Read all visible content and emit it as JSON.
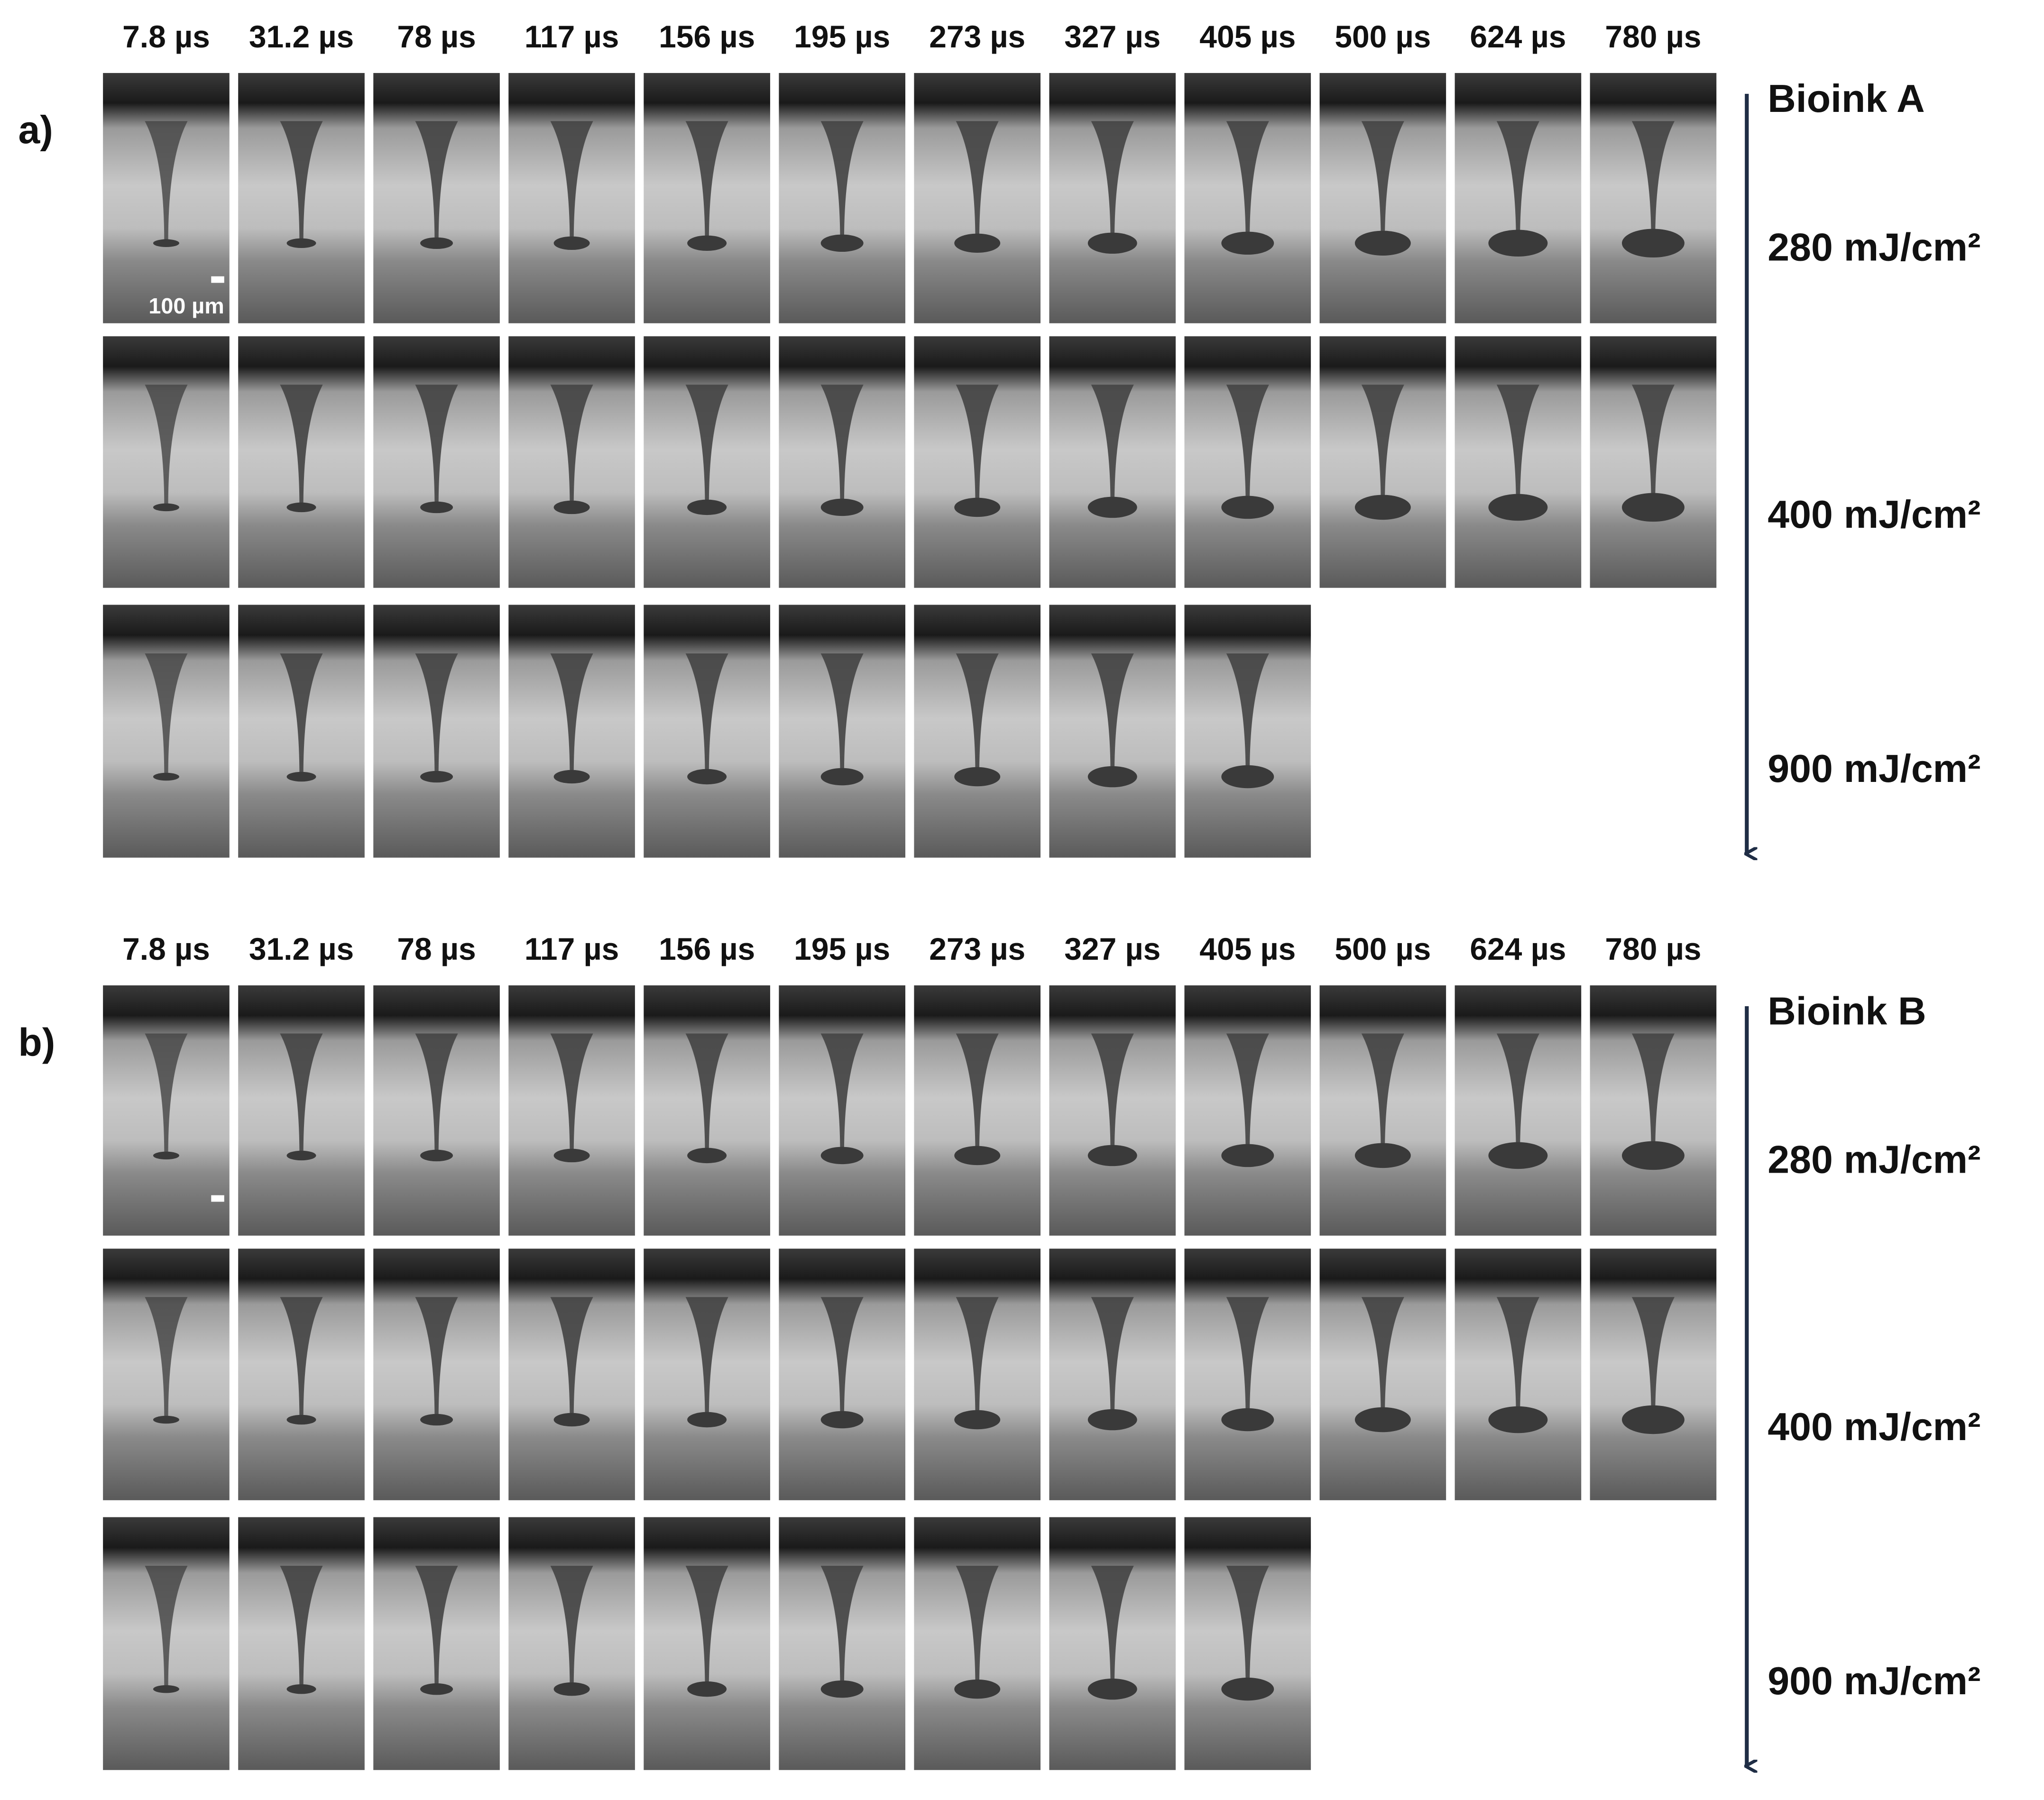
{
  "panels": [
    {
      "label": "a)",
      "bioink": "Bioink  A",
      "times": [
        "7.8 µs",
        "31.2 µs",
        "78 µs",
        "117 µs",
        "156 µs",
        "195 µs",
        "273 µs",
        "327 µs",
        "405 µs",
        "500 µs",
        "624 µs",
        "780 µs"
      ],
      "fluences": [
        "280 mJ/cm²",
        "400 mJ/cm²",
        "900 mJ/cm²"
      ],
      "scale_bar": "100 µm"
    },
    {
      "label": "b)",
      "bioink": "Bioink  B",
      "times": [
        "7.8 µs",
        "31.2 µs",
        "78 µs",
        "117 µs",
        "156 µs",
        "195 µs",
        "273 µs",
        "327 µs",
        "405 µs",
        "500 µs",
        "624 µs",
        "780 µs"
      ],
      "fluences": [
        "280 mJ/cm²",
        "400 mJ/cm²",
        "900 mJ/cm²"
      ]
    }
  ]
}
